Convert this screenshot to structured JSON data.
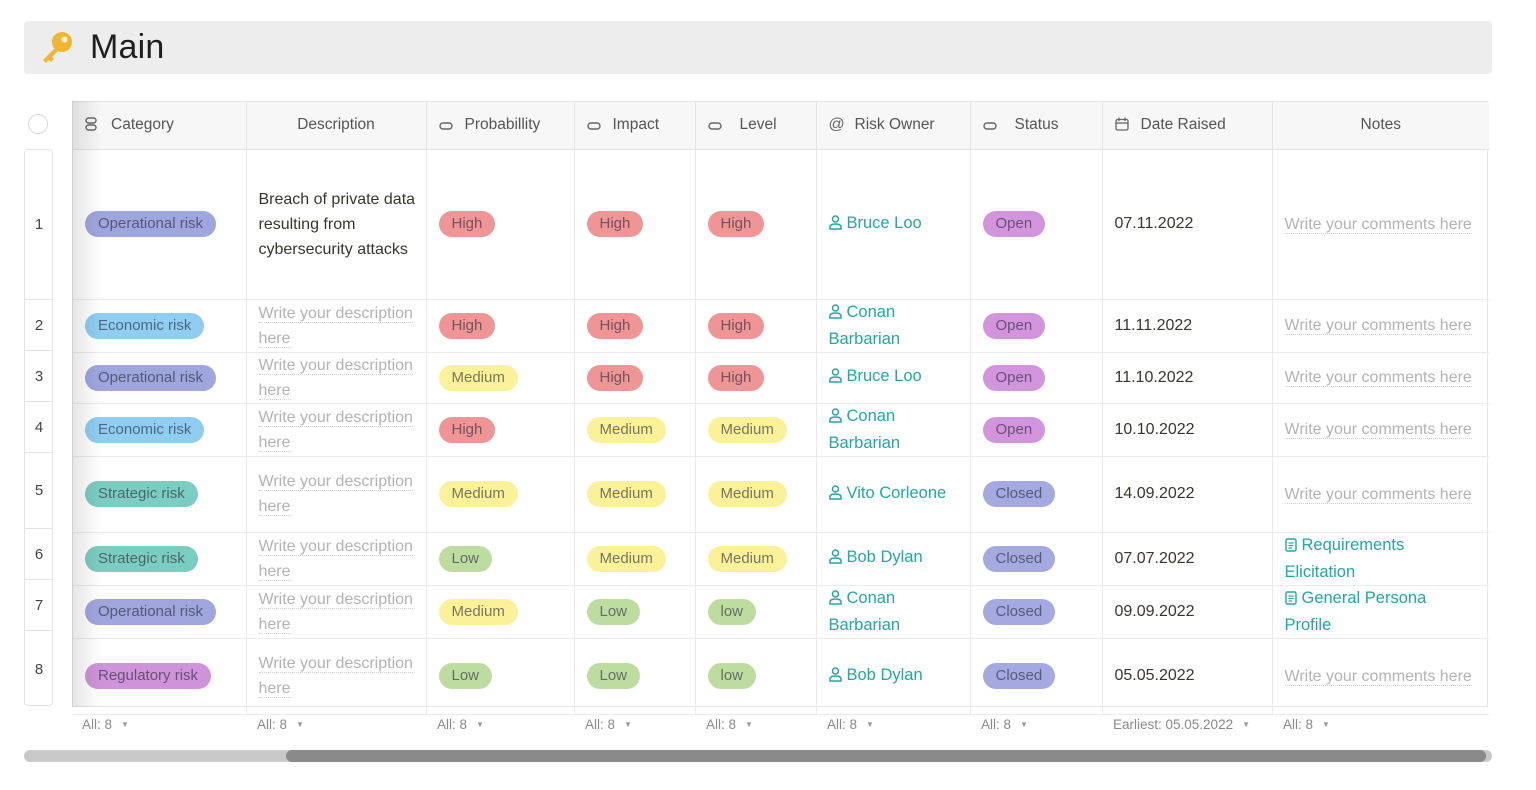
{
  "page": {
    "title": "Main",
    "title_icon": "key-icon"
  },
  "colors": {
    "operational": "#9fa6de",
    "economic": "#8fcdf3",
    "strategic": "#7bcdbf",
    "regulatory": "#cf93d9",
    "high": "#ef9595",
    "medium": "#fbf199",
    "low": "#bfdca0",
    "open": "#d394de",
    "closed": "#a4aae0",
    "link": "#23a6a6"
  },
  "columns": [
    {
      "key": "category",
      "label": "Category",
      "icon": "list-icon"
    },
    {
      "key": "description",
      "label": "Description",
      "icon": ""
    },
    {
      "key": "probability",
      "label": "Probabillity",
      "icon": "select-icon"
    },
    {
      "key": "impact",
      "label": "Impact",
      "icon": "select-icon"
    },
    {
      "key": "level",
      "label": "Level",
      "icon": "select-icon"
    },
    {
      "key": "owner",
      "label": "Risk Owner",
      "icon": "at-icon"
    },
    {
      "key": "status",
      "label": "Status",
      "icon": "select-icon"
    },
    {
      "key": "date",
      "label": "Date Raised",
      "icon": "calendar-icon"
    },
    {
      "key": "notes",
      "label": "Notes",
      "icon": ""
    }
  ],
  "placeholders": {
    "description": "Write your description here",
    "notes": "Write your comments here"
  },
  "rows": [
    {
      "num": "1",
      "category": "Operational risk",
      "cat_type": "operational",
      "description": "Breach of private data resulting from cybersecurity attacks",
      "probability": "High",
      "impact": "High",
      "level": "High",
      "owner": "Bruce Loo",
      "status": "Open",
      "date": "07.11.2022",
      "notes": ""
    },
    {
      "num": "2",
      "category": "Economic risk",
      "cat_type": "economic",
      "description": "",
      "probability": "High",
      "impact": "High",
      "level": "High",
      "owner": "Conan Barbarian",
      "status": "Open",
      "date": "11.11.2022",
      "notes": ""
    },
    {
      "num": "3",
      "category": "Operational risk",
      "cat_type": "operational",
      "description": "",
      "probability": "Medium",
      "impact": "High",
      "level": "High",
      "owner": "Bruce Loo",
      "status": "Open",
      "date": "11.10.2022",
      "notes": ""
    },
    {
      "num": "4",
      "category": "Economic risk",
      "cat_type": "economic",
      "description": "",
      "probability": "High",
      "impact": "Medium",
      "level": "Medium",
      "owner": "Conan Barbarian",
      "status": "Open",
      "date": "10.10.2022",
      "notes": ""
    },
    {
      "num": "5",
      "category": "Strategic risk",
      "cat_type": "strategic",
      "description": "",
      "probability": "Medium",
      "impact": "Medium",
      "level": "Medium",
      "owner": "Vito Corleone",
      "status": "Closed",
      "date": "14.09.2022",
      "notes": ""
    },
    {
      "num": "6",
      "category": "Strategic risk",
      "cat_type": "strategic",
      "description": "",
      "probability": "Low",
      "impact": "Medium",
      "level": "Medium",
      "owner": "Bob Dylan",
      "status": "Closed",
      "date": "07.07.2022",
      "notes": "Requirements Elicitation"
    },
    {
      "num": "7",
      "category": "Operational risk",
      "cat_type": "operational",
      "description": "",
      "probability": "Medium",
      "impact": "Low",
      "level": "low",
      "owner": "Conan Barbarian",
      "status": "Closed",
      "date": "09.09.2022",
      "notes": "General Persona Profile"
    },
    {
      "num": "8",
      "category": "Regulatory risk",
      "cat_type": "regulatory",
      "description": "",
      "probability": "Low",
      "impact": "Low",
      "level": "low",
      "owner": "Bob Dylan",
      "status": "Closed",
      "date": "05.05.2022",
      "notes": ""
    }
  ],
  "footer": {
    "aggregates": [
      "All: 8",
      "All: 8",
      "All: 8",
      "All: 8",
      "All: 8",
      "All: 8",
      "All: 8",
      "Earliest: 05.05.2022",
      "All: 8"
    ]
  }
}
